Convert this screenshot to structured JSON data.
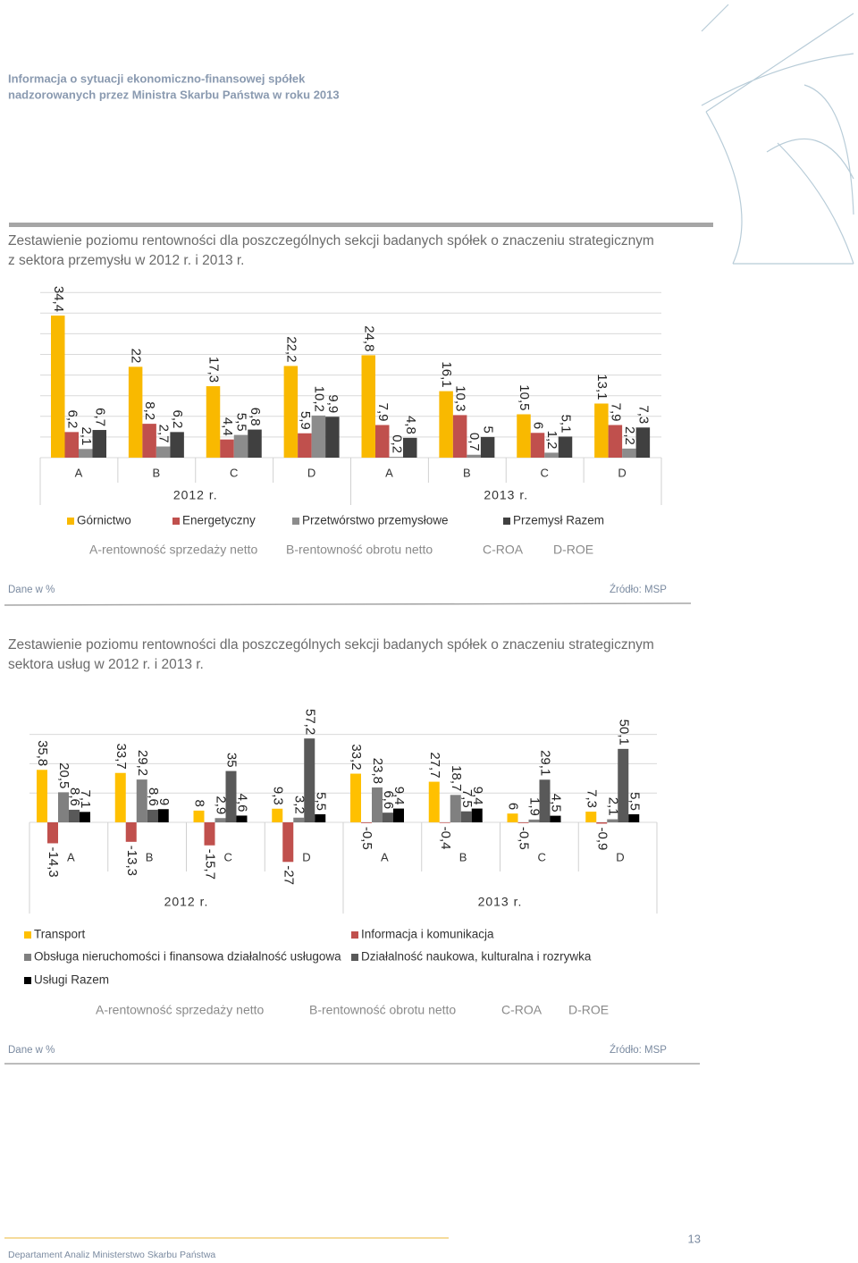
{
  "header": {
    "lines": [
      "Informacja o sytuacji ekonomiczno-finansowej spółek",
      "nadzorowanych przez Ministra Skarbu Państwa w roku 2013"
    ]
  },
  "chart_data": [
    {
      "type": "bar",
      "title": [
        "Zestawienie poziomu rentowności dla poszczególnych sekcji badanych spółek o znaczeniu strategicznym",
        "z sektora przemysłu w 2012 r. i 2013 r."
      ],
      "categories": [
        "A",
        "B",
        "C",
        "D",
        "A",
        "B",
        "C",
        "D"
      ],
      "group_labels": [
        "2012 r.",
        "2013 r."
      ],
      "series": [
        {
          "name": "Górnictwo",
          "color": "#f9b900",
          "values": [
            34.4,
            22,
            17.3,
            22.2,
            24.8,
            16.1,
            10.5,
            13.1
          ],
          "value_labels": [
            "34,4",
            "22",
            "17,3",
            "22,2",
            "24,8",
            "16,1",
            "10,5",
            "13,1"
          ]
        },
        {
          "name": "Energetyczny",
          "color": "#c0504d",
          "values": [
            6.2,
            8.2,
            4.4,
            5.9,
            7.9,
            10.3,
            6,
            7.9
          ],
          "value_labels": [
            "6,2",
            "8,2",
            "4,4",
            "5,9",
            "7,9",
            "10,3",
            "6",
            "7,9"
          ]
        },
        {
          "name": "Przetwórstwo przemysłowe",
          "color": "#8c8c8c",
          "values": [
            2.1,
            2.7,
            5.5,
            10.2,
            0.2,
            0.7,
            1.2,
            2.2
          ],
          "value_labels": [
            "2,1",
            "2,7",
            "5,5",
            "10,2",
            "0,2",
            "0,7",
            "1,2",
            "2,2"
          ]
        },
        {
          "name": "Przemysł Razem",
          "color": "#404040",
          "values": [
            6.7,
            6.2,
            6.8,
            9.9,
            4.8,
            5,
            5.1,
            7.3
          ],
          "value_labels": [
            "6,7",
            "6,2",
            "6,8",
            "9,9",
            "4,8",
            "5",
            "5,1",
            "7,3"
          ]
        }
      ],
      "ylim": [
        0,
        40
      ],
      "yticks": [
        0,
        5,
        10,
        15,
        20,
        25,
        30,
        35,
        40
      ],
      "grid": true,
      "abbreviations": [
        "A-rentowność sprzedaży netto",
        "B-rentowność obrotu netto",
        "C-ROA",
        "D-ROE"
      ],
      "unit_note": "Dane w %",
      "source": "Źródło: MSP"
    },
    {
      "type": "bar",
      "title": [
        "Zestawienie poziomu rentowności dla poszczególnych sekcji badanych spółek o znaczeniu strategicznym",
        "sektora usług w 2012 r. i 2013 r."
      ],
      "categories": [
        "A",
        "B",
        "C",
        "D",
        "A",
        "B",
        "C",
        "D"
      ],
      "group_labels": [
        "2012 r.",
        "2013 r."
      ],
      "series": [
        {
          "name": "Transport",
          "color": "#ffc000",
          "values": [
            35.8,
            33.7,
            8,
            9.3,
            33.2,
            27.7,
            6,
            7.3
          ],
          "value_labels": [
            "35,8",
            "33,7",
            "8",
            "9,3",
            "33,2",
            "27,7",
            "6",
            "7,3"
          ]
        },
        {
          "name": "Informacja i komunikacja",
          "color": "#c0504d",
          "values": [
            -14.3,
            -13.3,
            -15.7,
            -27,
            -0.5,
            -0.4,
            -0.5,
            -0.9
          ],
          "value_labels": [
            "-14,3",
            "-13,3",
            "-15,7",
            "-27",
            "-0,5",
            "-0,4",
            "-0,5",
            "-0,9"
          ]
        },
        {
          "name": "Obsługa nieruchomości i finansowa działalność usługowa",
          "color": "#808080",
          "values": [
            20.5,
            29.2,
            2.9,
            3.2,
            23.8,
            18.7,
            1.9,
            2.1
          ],
          "value_labels": [
            "20,5",
            "29,2",
            "2,9",
            "3,2",
            "23,8",
            "18,7",
            "1,9",
            "2,1"
          ]
        },
        {
          "name": "Działalność naukowa, kulturalna i rozrywka",
          "color": "#595959",
          "values": [
            8.6,
            8.6,
            35,
            57.2,
            6.6,
            7.5,
            29.1,
            50.1
          ],
          "value_labels": [
            "8,6",
            "8,6",
            "35",
            "57,2",
            "6,6",
            "7,5",
            "29,1",
            "50,1"
          ]
        },
        {
          "name": "Usługi Razem",
          "color": "#000000",
          "values": [
            7.1,
            9,
            4.6,
            5.5,
            9.4,
            9.4,
            4.5,
            5.5
          ],
          "value_labels": [
            "7,1",
            "9",
            "4,6",
            "5,5",
            "9,4",
            "9,4",
            "4,5",
            "5,5"
          ]
        }
      ],
      "ylim": [
        -30,
        60
      ],
      "yticks": [
        0,
        20,
        40,
        60
      ],
      "grid": true,
      "abbreviations": [
        "A-rentowność sprzedaży netto",
        "B-rentowność obrotu netto",
        "C-ROA",
        "D-ROE"
      ],
      "unit_note": "Dane w %",
      "source": "Źródło: MSP"
    }
  ],
  "footer": {
    "text": "Departament Analiz Ministerstwo Skarbu Państwa",
    "page_number": "13"
  }
}
